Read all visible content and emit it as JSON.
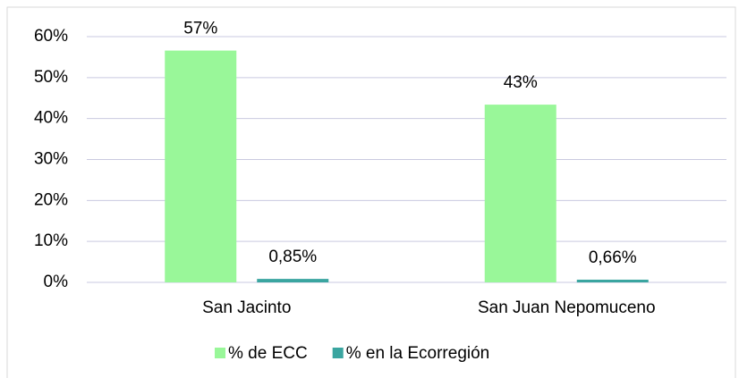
{
  "chart_data": {
    "type": "bar",
    "categories": [
      "San Jacinto",
      "San Juan Nepomuceno"
    ],
    "series": [
      {
        "name": "% de ECC",
        "color": "#99f799",
        "values": [
          56.6,
          43.4
        ],
        "value_labels": [
          "57%",
          "43%"
        ]
      },
      {
        "name": "% en la Ecorregión",
        "color": "#3aa5a0",
        "values": [
          0.85,
          0.66
        ],
        "value_labels": [
          "0,85%",
          "0,66%"
        ]
      }
    ],
    "ylim": [
      0,
      60
    ],
    "yticks": [
      {
        "value": 0,
        "label": "0%"
      },
      {
        "value": 10,
        "label": "10%"
      },
      {
        "value": 20,
        "label": "20%"
      },
      {
        "value": 30,
        "label": "30%"
      },
      {
        "value": 40,
        "label": "40%"
      },
      {
        "value": 50,
        "label": "50%"
      },
      {
        "value": 60,
        "label": "60%"
      }
    ],
    "grid": true,
    "legend": "bottom"
  }
}
